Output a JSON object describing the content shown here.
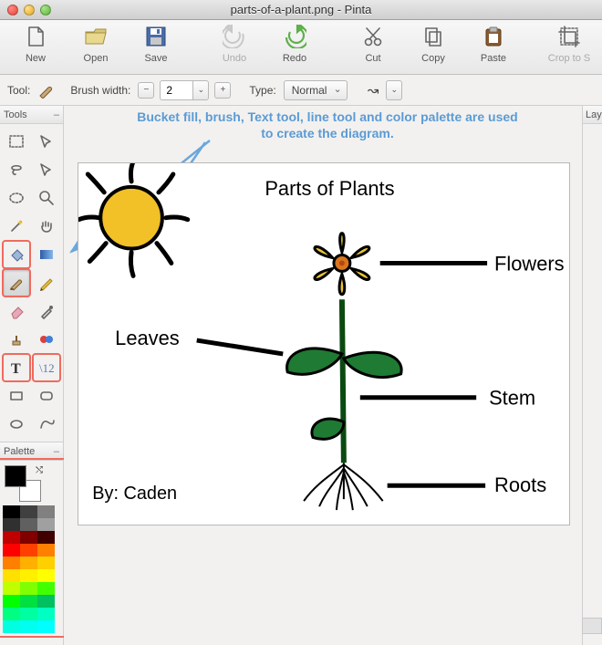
{
  "window": {
    "title": "parts-of-a-plant.png - Pinta"
  },
  "toolbar": {
    "new": "New",
    "open": "Open",
    "save": "Save",
    "undo": "Undo",
    "redo": "Redo",
    "cut": "Cut",
    "copy": "Copy",
    "paste": "Paste",
    "crop": "Crop to S"
  },
  "options": {
    "tool_label": "Tool:",
    "brush_width_label": "Brush width:",
    "brush_width_value": "2",
    "type_label": "Type:",
    "type_value": "Normal"
  },
  "panels": {
    "tools_title": "Tools",
    "palette_title": "Palette",
    "layers_title": "Lay"
  },
  "annotation": {
    "line1": "Bucket fill, brush, Text tool, line tool and color palette are used",
    "line2": "to create the diagram."
  },
  "tools": {
    "rect_select": "rectangle-select",
    "move": "move-tool",
    "lasso": "lasso-tool",
    "move_sel": "move-selection",
    "ellipse_sel": "ellipse-select",
    "zoom": "zoom-tool",
    "wand": "magic-wand",
    "pan": "pan-tool",
    "bucket": "bucket-fill",
    "gradient": "gradient-tool",
    "brush": "brush-tool",
    "pencil": "pencil-tool",
    "eraser": "eraser-tool",
    "picker": "color-picker",
    "clone": "clone-stamp",
    "recolor": "recolor-tool",
    "text": "text-tool",
    "line": "line-tool",
    "rect": "rectangle-shape",
    "rrect": "rounded-rect-shape",
    "ellipse": "ellipse-shape",
    "curve": "curve-shape"
  },
  "palette": {
    "fg": "#000000",
    "bg": "#ffffff",
    "rows": [
      [
        "#000000",
        "#404040",
        "#808080"
      ],
      [
        "#303030",
        "#606060",
        "#a0a0a0"
      ],
      [
        "#c00000",
        "#800000",
        "#400000"
      ],
      [
        "#ff0000",
        "#ff4000",
        "#ff8000"
      ],
      [
        "#ff8000",
        "#ffb000",
        "#ffd000"
      ],
      [
        "#ffe000",
        "#fff000",
        "#ffff00"
      ],
      [
        "#c0ff00",
        "#80ff00",
        "#40ff00"
      ],
      [
        "#00ff00",
        "#00e040",
        "#00c060"
      ],
      [
        "#00ff80",
        "#00ffa0",
        "#00ffc0"
      ],
      [
        "#00ffe0",
        "#00fff0",
        "#00ffff"
      ]
    ]
  },
  "colors": {
    "sun_yellow": "#f2c027",
    "petal_yellow": "#e9c437",
    "flower_center": "#d8751d",
    "leaf_green": "#1f7a33",
    "stem_green": "#0a4a11",
    "black": "#000000",
    "annotation_blue": "#5b9bd5",
    "arrow_blue": "#6aa7dd"
  },
  "diagram": {
    "title": "Parts of Plants",
    "flowers": "Flowers",
    "leaves": "Leaves",
    "stem": "Stem",
    "roots": "Roots",
    "byline": "By: Caden"
  }
}
